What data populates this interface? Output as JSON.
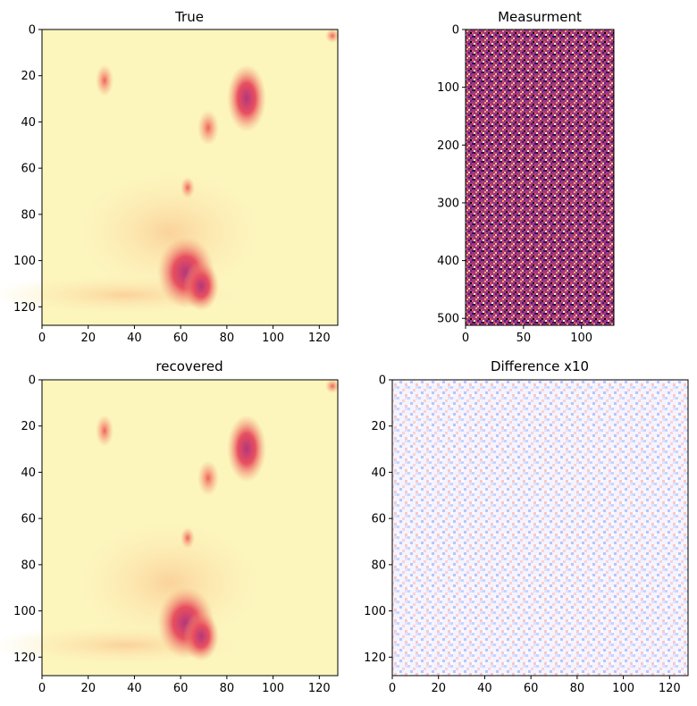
{
  "colors": {
    "magma_low": "#000004",
    "magma_mid": "#b73779",
    "magma_high": "#fcfdbf",
    "diff_neg": "#3b4cc0",
    "diff_pos": "#d62728"
  },
  "chart_data": [
    {
      "type": "heatmap",
      "title": "True",
      "colormap": "magma",
      "xlim": [
        0,
        128
      ],
      "ylim": [
        128,
        0
      ],
      "xticks": [
        0,
        20,
        40,
        60,
        80,
        100,
        120
      ],
      "yticks": [
        0,
        20,
        40,
        60,
        80,
        100,
        120
      ],
      "features": [
        {
          "x": 27,
          "y": 22,
          "intensity": 0.7
        },
        {
          "x": 88,
          "y": 30,
          "intensity": 0.8
        },
        {
          "x": 72,
          "y": 42,
          "intensity": 0.6
        },
        {
          "x": 63,
          "y": 68,
          "intensity": 0.5
        },
        {
          "x": 62,
          "y": 107,
          "intensity": 1.0
        },
        {
          "x": 70,
          "y": 113,
          "intensity": 0.9
        },
        {
          "x": 127,
          "y": 2,
          "intensity": 0.8
        }
      ]
    },
    {
      "type": "heatmap",
      "title": "Measurment",
      "colormap": "magma",
      "xlim": [
        0,
        128
      ],
      "ylim": [
        512,
        0
      ],
      "xticks": [
        0,
        50,
        100
      ],
      "yticks": [
        0,
        100,
        200,
        300,
        400,
        500
      ],
      "content": "random noise"
    },
    {
      "type": "heatmap",
      "title": "recovered",
      "colormap": "magma",
      "xlim": [
        0,
        128
      ],
      "ylim": [
        128,
        0
      ],
      "xticks": [
        0,
        20,
        40,
        60,
        80,
        100,
        120
      ],
      "yticks": [
        0,
        20,
        40,
        60,
        80,
        100,
        120
      ]
    },
    {
      "type": "heatmap",
      "title": "Difference x10",
      "colormap": "bwr",
      "xlim": [
        0,
        128
      ],
      "ylim": [
        128,
        0
      ],
      "xticks": [
        0,
        20,
        40,
        60,
        80,
        100,
        120
      ],
      "yticks": [
        0,
        20,
        40,
        60,
        80,
        100,
        120
      ],
      "content": "small random residuals"
    }
  ]
}
